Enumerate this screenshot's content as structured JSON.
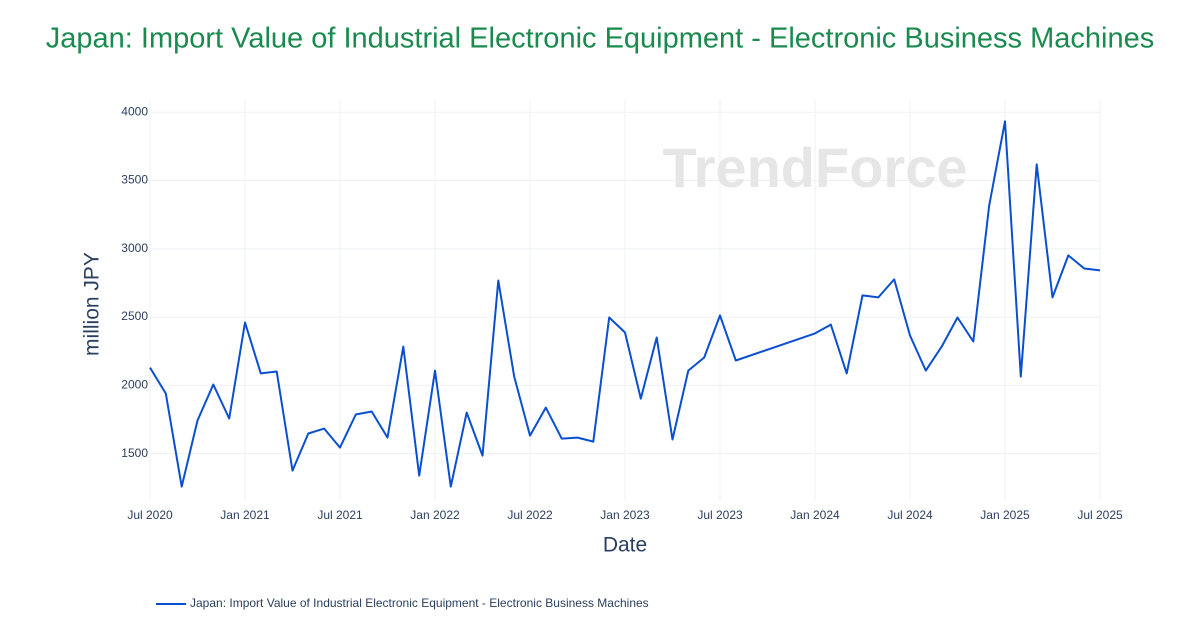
{
  "chart_data": {
    "type": "line",
    "title": "Japan: Import Value of Industrial Electronic Equipment - Electronic Business Machines",
    "x_label": "Date",
    "y_label": "million JPY",
    "watermark": "TrendForce",
    "grid": true,
    "legend": "bottom-left",
    "x": [
      "2020-07",
      "2020-08",
      "2020-09",
      "2020-10",
      "2020-11",
      "2020-12",
      "2021-01",
      "2021-02",
      "2021-03",
      "2021-04",
      "2021-05",
      "2021-06",
      "2021-07",
      "2021-08",
      "2021-09",
      "2021-10",
      "2021-11",
      "2021-12",
      "2022-01",
      "2022-02",
      "2022-03",
      "2022-04",
      "2022-05",
      "2022-06",
      "2022-07",
      "2022-08",
      "2022-09",
      "2022-10",
      "2022-11",
      "2022-12",
      "2023-01",
      "2023-02",
      "2023-03",
      "2023-04",
      "2023-05",
      "2023-06",
      "2023-07",
      "2023-08",
      "2024-01",
      "2024-02",
      "2024-03",
      "2024-04",
      "2024-05",
      "2024-06",
      "2024-07",
      "2024-08",
      "2024-09",
      "2024-10",
      "2024-11",
      "2024-12",
      "2025-01",
      "2025-02",
      "2025-03",
      "2025-04",
      "2025-05",
      "2025-06",
      "2025-07"
    ],
    "series": [
      {
        "name": "Japan: Import Value of Industrial Electronic Equipment - Electronic Business Machines",
        "color": "#0a4fd0",
        "values": [
          2130,
          1940,
          1258,
          1742,
          2006,
          1757,
          2460,
          2087,
          2101,
          1375,
          1647,
          1683,
          1544,
          1786,
          1808,
          1617,
          2284,
          1339,
          2108,
          1258,
          1800,
          1485,
          2768,
          2064,
          1632,
          1837,
          1610,
          1617,
          1588,
          2497,
          2387,
          1903,
          2350,
          1603,
          2108,
          2204,
          2512,
          2182,
          2380,
          2445,
          2087,
          2659,
          2644,
          2776,
          2365,
          2108,
          2284,
          2497,
          2321,
          3318,
          3934,
          2064,
          3618,
          2644,
          2952,
          2856,
          2842
        ]
      }
    ],
    "xlim": [
      "2020-07",
      "2025-07"
    ],
    "xticks": [
      {
        "value": "2020-07",
        "label": "Jul 2020"
      },
      {
        "value": "2021-01",
        "label": "Jan 2021"
      },
      {
        "value": "2021-07",
        "label": "Jul 2021"
      },
      {
        "value": "2022-01",
        "label": "Jan 2022"
      },
      {
        "value": "2022-07",
        "label": "Jul 2022"
      },
      {
        "value": "2023-01",
        "label": "Jan 2023"
      },
      {
        "value": "2023-07",
        "label": "Jul 2023"
      },
      {
        "value": "2024-01",
        "label": "Jan 2024"
      },
      {
        "value": "2024-07",
        "label": "Jul 2024"
      },
      {
        "value": "2025-01",
        "label": "Jan 2025"
      },
      {
        "value": "2025-07",
        "label": "Jul 2025"
      }
    ],
    "ylim": [
      1160,
      4090
    ],
    "yticks": [
      1500,
      2000,
      2500,
      3000,
      3500,
      4000
    ]
  }
}
